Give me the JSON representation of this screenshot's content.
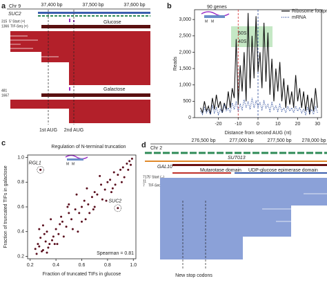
{
  "panel_a": {
    "letter": "a",
    "chromosome": "Chr 9",
    "coords": [
      "37,400 bp",
      "37,500 bp",
      "37,600 bp"
    ],
    "gene": "SUC2",
    "start_count": "315",
    "start_label": "5' Start (+)",
    "tif_count": "1366",
    "tif_label": "TIF-Seq (+)",
    "glucose": "Glucose",
    "galactose": "Galactose",
    "gal_start_count": "481",
    "gal_tif_count": "1667",
    "aug1": "1st AUG",
    "aug2": "2nd AUG"
  },
  "panel_b": {
    "letter": "b",
    "inset_title": "90 genes",
    "sub60": "60S",
    "sub40": "40S",
    "m1": "M",
    "m2": "M"
  },
  "panel_c": {
    "letter": "c",
    "m1": "M",
    "m2": "M"
  },
  "panel_d": {
    "letter": "d",
    "chromosome": "Chr 2",
    "coords": [
      "276,500 bp",
      "277,000 bp",
      "277,500 bp",
      "278,000 bp"
    ],
    "sut": "SUT013",
    "gene": "GAL10",
    "domain1": "Mutarotase domain",
    "domain2": "UDP-glucose epimerase domain",
    "counts": [
      "717",
      "11",
      "7"
    ],
    "count_labels": [
      "5' Start (–)",
      "TIF-Seq (–)"
    ],
    "annotation": "New stop codons"
  },
  "chart_data": [
    {
      "type": "line",
      "xlabel": "Distance from second AUG (nt)",
      "ylabel": "Reads",
      "x": [
        -29,
        -28,
        -27,
        -26,
        -25,
        -24,
        -23,
        -22,
        -21,
        -20,
        -19,
        -18,
        -17,
        -16,
        -15,
        -14,
        -13,
        -12,
        -11,
        -10,
        -9,
        -8,
        -7,
        -6,
        -5,
        -4,
        -3,
        -2,
        -1,
        0,
        1,
        2,
        3,
        4,
        5,
        6,
        7,
        8,
        9,
        10,
        11,
        12,
        13,
        14,
        15,
        16,
        17,
        18,
        19,
        20,
        21,
        22,
        23,
        24,
        25,
        26,
        27,
        28,
        29,
        30
      ],
      "series": [
        {
          "name": "Ribosome footprint",
          "color": "#111111",
          "linestyle": "solid",
          "values": [
            300,
            150,
            500,
            200,
            350,
            100,
            600,
            250,
            700,
            300,
            500,
            150,
            450,
            250,
            800,
            300,
            900,
            600,
            2400,
            400,
            1600,
            800,
            2000,
            500,
            3200,
            900,
            2500,
            1200,
            3100,
            1400,
            2000,
            900,
            2900,
            1100,
            2600,
            700,
            1800,
            500,
            1500,
            800,
            1700,
            500,
            1200,
            300,
            1000,
            400,
            800,
            300,
            1300,
            500,
            900,
            300,
            800,
            200,
            700,
            100,
            600,
            200,
            900,
            300
          ]
        },
        {
          "name": "mRNA",
          "color": "#2a4a9a",
          "linestyle": "dotted",
          "values": [
            200,
            100,
            300,
            150,
            250,
            100,
            350,
            150,
            300,
            100,
            250,
            150,
            400,
            200,
            300,
            150,
            450,
            250,
            500,
            200,
            400,
            250,
            550,
            300,
            500,
            250,
            600,
            300,
            500,
            350,
            450,
            250,
            500,
            300,
            400,
            200,
            450,
            250,
            350,
            200,
            400,
            200,
            300,
            150,
            350,
            200,
            300,
            150,
            350,
            200,
            300,
            150,
            250,
            100,
            300,
            150,
            250,
            100,
            350,
            150
          ]
        }
      ],
      "vlines": [
        {
          "x": -10,
          "color": "#d62728"
        },
        {
          "x": 0,
          "color": "#2a4a9a"
        }
      ],
      "xlim": [
        -32,
        32
      ],
      "xticks": [
        -20,
        -10,
        0,
        10,
        20,
        30
      ],
      "ylim": [
        0,
        3300
      ],
      "yticks": [
        0,
        500,
        {
          "value": 1000,
          "label": "1,000"
        },
        {
          "value": 1500,
          "label": "1,500"
        },
        {
          "value": 2000,
          "label": "2,000"
        },
        {
          "value": 2500,
          "label": "2,500"
        },
        {
          "value": 3000,
          "label": "3,000"
        }
      ],
      "legend": "upper right"
    },
    {
      "type": "scatter",
      "title": "Regulation of N-terminal truncation",
      "xlabel": "Fraction of truncated TIFs in glucose",
      "ylabel": "Fraction of truncated TIFs in galactose",
      "color": "#5a0f1e",
      "x": [
        0.25,
        0.27,
        0.3,
        0.32,
        0.28,
        0.35,
        0.33,
        0.38,
        0.3,
        0.4,
        0.42,
        0.36,
        0.45,
        0.48,
        0.5,
        0.44,
        0.52,
        0.55,
        0.5,
        0.58,
        0.6,
        0.62,
        0.56,
        0.65,
        0.68,
        0.7,
        0.64,
        0.72,
        0.75,
        0.78,
        0.8,
        0.74,
        0.82,
        0.85,
        0.88,
        0.9,
        0.92,
        0.95,
        0.97,
        0.99,
        0.26,
        0.29,
        0.31,
        0.34,
        0.37,
        0.41,
        0.46,
        0.53,
        0.6,
        0.66,
        0.7,
        0.76,
        0.83,
        0.86,
        0.93,
        0.96,
        0.24,
        0.27,
        0.33,
        0.39,
        0.43,
        0.49,
        0.57,
        0.63,
        0.69,
        0.79,
        0.84,
        0.91,
        0.98,
        0.28
      ],
      "values": [
        0.22,
        0.28,
        0.25,
        0.32,
        0.35,
        0.3,
        0.4,
        0.36,
        0.45,
        0.42,
        0.38,
        0.5,
        0.48,
        0.44,
        0.55,
        0.52,
        0.5,
        0.58,
        0.62,
        0.55,
        0.6,
        0.65,
        0.7,
        0.62,
        0.68,
        0.72,
        0.75,
        0.7,
        0.78,
        0.74,
        0.8,
        0.85,
        0.82,
        0.88,
        0.86,
        0.9,
        0.92,
        0.95,
        0.97,
        0.99,
        0.3,
        0.24,
        0.38,
        0.27,
        0.33,
        0.3,
        0.36,
        0.42,
        0.48,
        0.55,
        0.6,
        0.66,
        0.72,
        0.78,
        0.84,
        0.9,
        0.26,
        0.42,
        0.23,
        0.3,
        0.46,
        0.6,
        0.4,
        0.5,
        0.58,
        0.65,
        0.75,
        0.8,
        0.94,
        0.9
      ],
      "annotations": [
        {
          "text": "RGL1",
          "x": 0.28,
          "y": 0.9
        },
        {
          "text": "SUC2",
          "x": 0.88,
          "y": 0.59
        }
      ],
      "stat": "Spearman = 0.81",
      "xlim": [
        0.18,
        1.02
      ],
      "xticks": [
        0.2,
        0.4,
        0.6,
        0.8,
        {
          "value": 1,
          "label": "1.0"
        }
      ],
      "ylim": [
        0.18,
        1.02
      ],
      "yticks": [
        0.2,
        0.4,
        0.6,
        0.8,
        {
          "value": 1,
          "label": "1.0"
        }
      ]
    }
  ]
}
